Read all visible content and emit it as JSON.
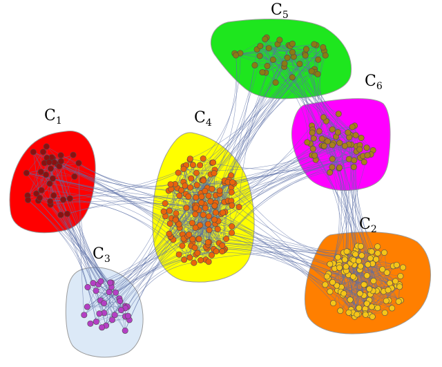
{
  "diagram": {
    "type": "clustered-network",
    "edge_color": "#5b6fa6",
    "clusters": [
      {
        "id": "C1",
        "letter": "C",
        "index": "1",
        "region_fill": "#ff0000",
        "node_fill": "#8b1010",
        "node_count": 35
      },
      {
        "id": "C2",
        "letter": "C",
        "index": "2",
        "region_fill": "#ff7f00",
        "node_fill": "#f5c518",
        "node_count": 110
      },
      {
        "id": "C3",
        "letter": "C",
        "index": "3",
        "region_fill": "#dce9f7",
        "node_fill": "#b43fc4",
        "node_count": 32
      },
      {
        "id": "C4",
        "letter": "C",
        "index": "4",
        "region_fill": "#ffff00",
        "node_fill": "#e8640c",
        "node_count": 140
      },
      {
        "id": "C5",
        "letter": "C",
        "index": "5",
        "region_fill": "#1ee61e",
        "node_fill": "#8a7a14",
        "node_count": 40
      },
      {
        "id": "C6",
        "letter": "C",
        "index": "6",
        "region_fill": "#ff00ff",
        "node_fill": "#a87f1c",
        "node_count": 55
      }
    ],
    "links": [
      [
        "C1",
        "C4"
      ],
      [
        "C1",
        "C3"
      ],
      [
        "C3",
        "C4"
      ],
      [
        "C4",
        "C5"
      ],
      [
        "C4",
        "C6"
      ],
      [
        "C4",
        "C2"
      ],
      [
        "C5",
        "C6"
      ],
      [
        "C6",
        "C2"
      ]
    ]
  }
}
